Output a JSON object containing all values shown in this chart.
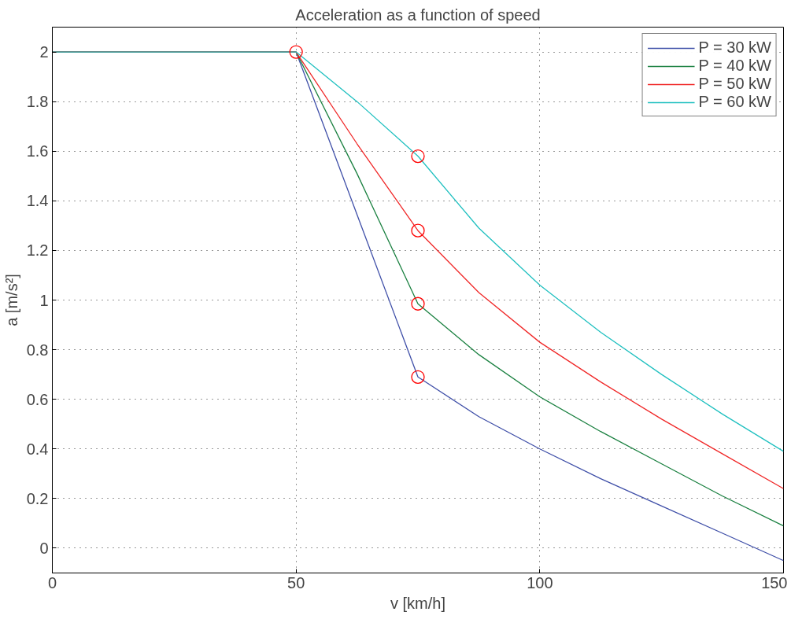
{
  "chart_data": {
    "type": "line",
    "title": "Acceleration as a function of speed",
    "xlabel": "v [km/h]",
    "ylabel": "a [m/s²]",
    "xlim": [
      0,
      150
    ],
    "ylim": [
      -0.1,
      2.1
    ],
    "xticks": [
      0,
      50,
      100,
      150
    ],
    "yticks": [
      0,
      0.2,
      0.4,
      0.6,
      0.8,
      1,
      1.2,
      1.4,
      1.6,
      1.8,
      2
    ],
    "grid": true,
    "legend": "top right",
    "line_style": "solid",
    "marker": "none",
    "series": [
      {
        "name": "P = 30 kW",
        "color": "#3f4fa8",
        "x": [
          0,
          50,
          62.5,
          75,
          87.5,
          100,
          112.5,
          125,
          137.5,
          150
        ],
        "values": [
          2,
          2,
          1.345,
          0.69,
          0.53,
          0.4,
          0.28,
          0.17,
          0.06,
          -0.05
        ]
      },
      {
        "name": "P = 40 kW",
        "color": "#1a8040",
        "x": [
          0,
          50,
          62.5,
          75,
          87.5,
          100,
          112.5,
          125,
          137.5,
          150
        ],
        "values": [
          2,
          2,
          1.51,
          0.985,
          0.78,
          0.61,
          0.47,
          0.34,
          0.21,
          0.09
        ]
      },
      {
        "name": "P = 50 kW",
        "color": "#f02828",
        "x": [
          0,
          50,
          62.5,
          75,
          87.5,
          100,
          112.5,
          125,
          137.5,
          150
        ],
        "values": [
          2,
          2,
          1.63,
          1.28,
          1.03,
          0.83,
          0.67,
          0.52,
          0.38,
          0.24
        ]
      },
      {
        "name": "P = 60 kW",
        "color": "#20c0c0",
        "x": [
          0,
          50,
          62.5,
          75,
          87.5,
          100,
          112.5,
          125,
          137.5,
          150
        ],
        "values": [
          2,
          2,
          1.8,
          1.58,
          1.29,
          1.06,
          0.87,
          0.7,
          0.54,
          0.39
        ]
      },
      {
        "type": "scatter",
        "marker": "circle",
        "color": "#ff0000",
        "x": [
          50,
          75,
          75,
          75,
          75
        ],
        "values": [
          2,
          0.69,
          0.985,
          1.28,
          1.58
        ]
      }
    ]
  }
}
